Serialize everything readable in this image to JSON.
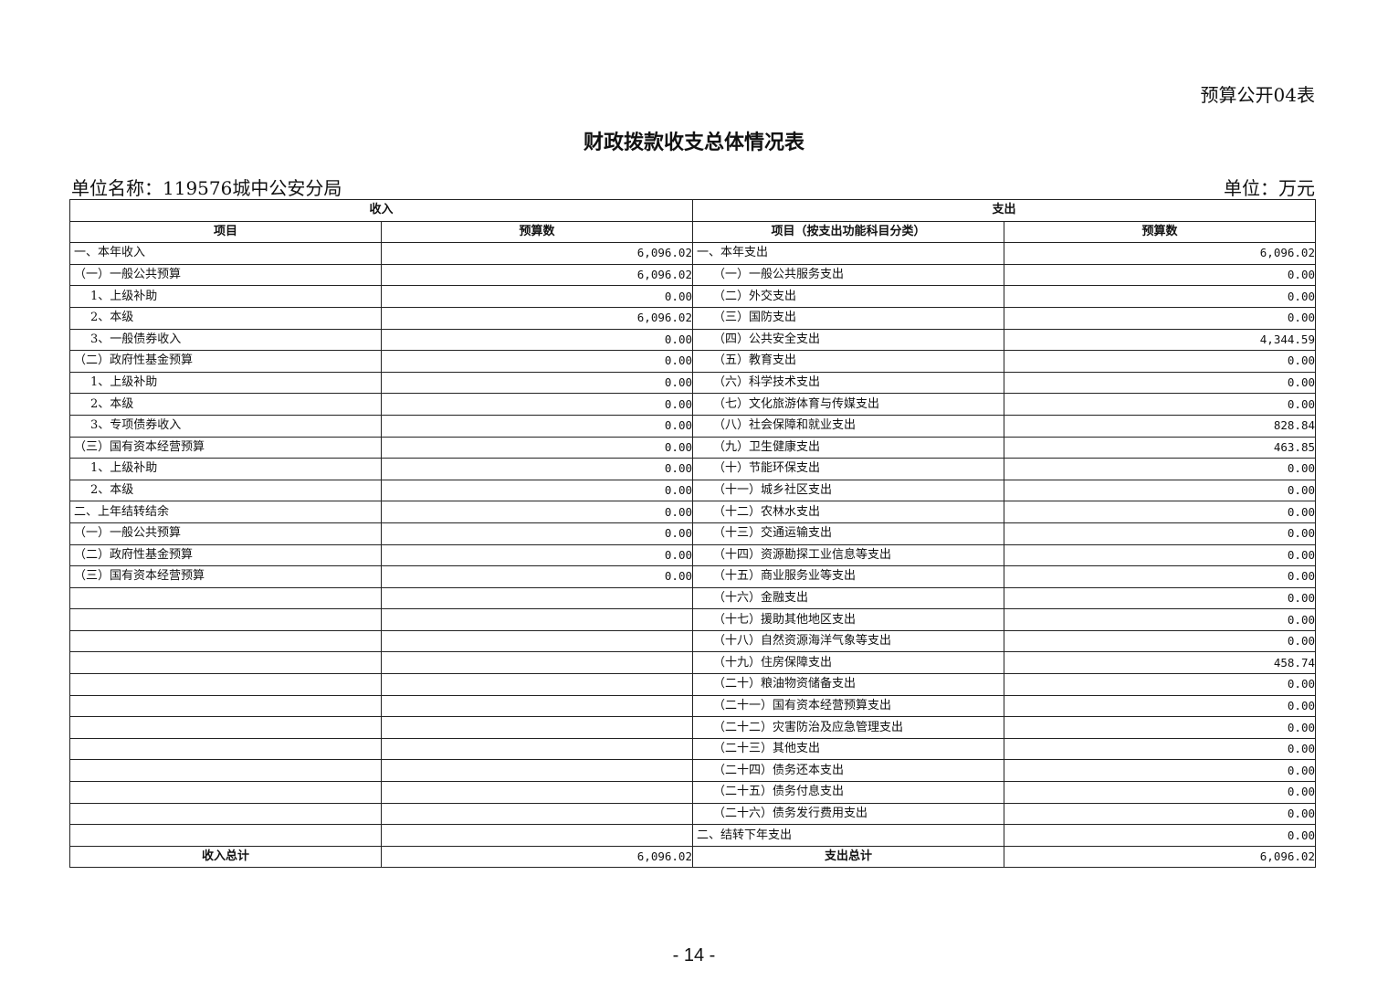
{
  "form_no": "预算公开04表",
  "title": "财政拨款收支总体情况表",
  "unit_name": "单位名称：119576城中公安分局",
  "unit": "单位：万元",
  "headers": {
    "income": "收入",
    "expense": "支出",
    "income_item": "项目",
    "income_budget": "预算数",
    "expense_item": "项目（按支出功能科目分类）",
    "expense_budget": "预算数"
  },
  "rows": [
    {
      "in_item": "一、本年收入",
      "in_level": 0,
      "in_val": "6,096.02",
      "ex_item": "一、本年支出",
      "ex_level": 0,
      "ex_val": "6,096.02"
    },
    {
      "in_item": "（一）一般公共预算",
      "in_level": 1,
      "in_val": "6,096.02",
      "ex_item": "（一）一般公共服务支出",
      "ex_level": 1,
      "ex_val": "0.00"
    },
    {
      "in_item": "1、上级补助",
      "in_level": 2,
      "in_val": "0.00",
      "ex_item": "（二）外交支出",
      "ex_level": 1,
      "ex_val": "0.00"
    },
    {
      "in_item": "2、本级",
      "in_level": 2,
      "in_val": "6,096.02",
      "ex_item": "（三）国防支出",
      "ex_level": 1,
      "ex_val": "0.00"
    },
    {
      "in_item": "3、一般债券收入",
      "in_level": 2,
      "in_val": "0.00",
      "ex_item": "（四）公共安全支出",
      "ex_level": 1,
      "ex_val": "4,344.59"
    },
    {
      "in_item": "（二）政府性基金预算",
      "in_level": 1,
      "in_val": "0.00",
      "ex_item": "（五）教育支出",
      "ex_level": 1,
      "ex_val": "0.00"
    },
    {
      "in_item": "1、上级补助",
      "in_level": 2,
      "in_val": "0.00",
      "ex_item": "（六）科学技术支出",
      "ex_level": 1,
      "ex_val": "0.00"
    },
    {
      "in_item": "2、本级",
      "in_level": 2,
      "in_val": "0.00",
      "ex_item": "（七）文化旅游体育与传媒支出",
      "ex_level": 1,
      "ex_val": "0.00"
    },
    {
      "in_item": "3、专项债券收入",
      "in_level": 2,
      "in_val": "0.00",
      "ex_item": "（八）社会保障和就业支出",
      "ex_level": 1,
      "ex_val": "828.84"
    },
    {
      "in_item": "（三）国有资本经营预算",
      "in_level": 1,
      "in_val": "0.00",
      "ex_item": "（九）卫生健康支出",
      "ex_level": 1,
      "ex_val": "463.85"
    },
    {
      "in_item": "1、上级补助",
      "in_level": 2,
      "in_val": "0.00",
      "ex_item": "（十）节能环保支出",
      "ex_level": 1,
      "ex_val": "0.00"
    },
    {
      "in_item": "2、本级",
      "in_level": 2,
      "in_val": "0.00",
      "ex_item": "（十一）城乡社区支出",
      "ex_level": 1,
      "ex_val": "0.00"
    },
    {
      "in_item": "二、上年结转结余",
      "in_level": 0,
      "in_val": "0.00",
      "ex_item": "（十二）农林水支出",
      "ex_level": 1,
      "ex_val": "0.00"
    },
    {
      "in_item": "（一）一般公共预算",
      "in_level": 1,
      "in_val": "0.00",
      "ex_item": "（十三）交通运输支出",
      "ex_level": 1,
      "ex_val": "0.00"
    },
    {
      "in_item": "（二）政府性基金预算",
      "in_level": 1,
      "in_val": "0.00",
      "ex_item": "（十四）资源勘探工业信息等支出",
      "ex_level": 1,
      "ex_val": "0.00"
    },
    {
      "in_item": "（三）国有资本经营预算",
      "in_level": 1,
      "in_val": "0.00",
      "ex_item": "（十五）商业服务业等支出",
      "ex_level": 1,
      "ex_val": "0.00"
    },
    {
      "in_item": "",
      "in_level": 0,
      "in_val": "",
      "ex_item": "（十六）金融支出",
      "ex_level": 1,
      "ex_val": "0.00"
    },
    {
      "in_item": "",
      "in_level": 0,
      "in_val": "",
      "ex_item": "（十七）援助其他地区支出",
      "ex_level": 1,
      "ex_val": "0.00"
    },
    {
      "in_item": "",
      "in_level": 0,
      "in_val": "",
      "ex_item": "（十八）自然资源海洋气象等支出",
      "ex_level": 1,
      "ex_val": "0.00"
    },
    {
      "in_item": "",
      "in_level": 0,
      "in_val": "",
      "ex_item": "（十九）住房保障支出",
      "ex_level": 1,
      "ex_val": "458.74"
    },
    {
      "in_item": "",
      "in_level": 0,
      "in_val": "",
      "ex_item": "（二十）粮油物资储备支出",
      "ex_level": 1,
      "ex_val": "0.00"
    },
    {
      "in_item": "",
      "in_level": 0,
      "in_val": "",
      "ex_item": "（二十一）国有资本经营预算支出",
      "ex_level": 1,
      "ex_val": "0.00"
    },
    {
      "in_item": "",
      "in_level": 0,
      "in_val": "",
      "ex_item": "（二十二）灾害防治及应急管理支出",
      "ex_level": 1,
      "ex_val": "0.00"
    },
    {
      "in_item": "",
      "in_level": 0,
      "in_val": "",
      "ex_item": "（二十三）其他支出",
      "ex_level": 1,
      "ex_val": "0.00"
    },
    {
      "in_item": "",
      "in_level": 0,
      "in_val": "",
      "ex_item": "（二十四）债务还本支出",
      "ex_level": 1,
      "ex_val": "0.00"
    },
    {
      "in_item": "",
      "in_level": 0,
      "in_val": "",
      "ex_item": "（二十五）债务付息支出",
      "ex_level": 1,
      "ex_val": "0.00"
    },
    {
      "in_item": "",
      "in_level": 0,
      "in_val": "",
      "ex_item": "（二十六）债务发行费用支出",
      "ex_level": 1,
      "ex_val": "0.00"
    },
    {
      "in_item": "",
      "in_level": 0,
      "in_val": "",
      "ex_item": "二、结转下年支出",
      "ex_level": 0,
      "ex_val": "0.00"
    }
  ],
  "totals": {
    "income_label": "收入总计",
    "income_value": "6,096.02",
    "expense_label": "支出总计",
    "expense_value": "6,096.02"
  },
  "page_number": "- 14 -"
}
